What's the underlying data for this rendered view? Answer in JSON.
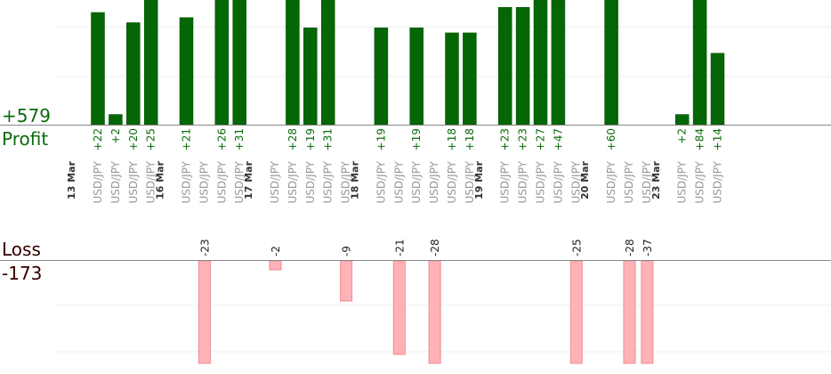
{
  "colors": {
    "profit_bar": "#056605",
    "profit_bar_edge": "#034f03",
    "profit_text": "#0b6b0b",
    "loss_bar": "#ffb3b8",
    "loss_bar_edge": "#f08a92",
    "loss_text": "#330000",
    "axis_line": "#888888",
    "grid_line": "#eeeeee",
    "pair_text": "#999999",
    "date_text": "#333333",
    "loss_value_text": "#222222"
  },
  "profit_summary": {
    "total": "+579",
    "label": "Profit"
  },
  "loss_summary": {
    "label": "Loss",
    "total": "-173"
  },
  "chart_data": {
    "type": "bar",
    "pair": "USD/JPY",
    "profit_scale_max": 37,
    "loss_scale_max": 37,
    "dates": [
      "13 Mar",
      "16 Mar",
      "17 Mar",
      "18 Mar",
      "19 Mar",
      "20 Mar",
      "23 Mar"
    ],
    "trades": [
      {
        "date": "13 Mar",
        "label": "USD/JPY",
        "value": 22
      },
      {
        "date": "13 Mar",
        "label": "USD/JPY",
        "value": 2
      },
      {
        "date": "13 Mar",
        "label": "USD/JPY",
        "value": 20
      },
      {
        "date": "13 Mar",
        "label": "USD/JPY",
        "value": 25
      },
      {
        "date": "16 Mar",
        "label": "USD/JPY",
        "value": 21
      },
      {
        "date": "16 Mar",
        "label": "USD/JPY",
        "value": -23
      },
      {
        "date": "16 Mar",
        "label": "USD/JPY",
        "value": 26
      },
      {
        "date": "16 Mar",
        "label": "USD/JPY",
        "value": 31
      },
      {
        "date": "17 Mar",
        "label": "USD/JPY",
        "value": -2
      },
      {
        "date": "17 Mar",
        "label": "USD/JPY",
        "value": 28
      },
      {
        "date": "17 Mar",
        "label": "USD/JPY",
        "value": 19
      },
      {
        "date": "17 Mar",
        "label": "USD/JPY",
        "value": 31
      },
      {
        "date": "17 Mar",
        "label": "USD/JPY",
        "value": -9
      },
      {
        "date": "18 Mar",
        "label": "USD/JPY",
        "value": 19
      },
      {
        "date": "18 Mar",
        "label": "USD/JPY",
        "value": -21
      },
      {
        "date": "18 Mar",
        "label": "USD/JPY",
        "value": 19
      },
      {
        "date": "18 Mar",
        "label": "USD/JPY",
        "value": -28
      },
      {
        "date": "18 Mar",
        "label": "USD/JPY",
        "value": 18
      },
      {
        "date": "18 Mar",
        "label": "USD/JPY",
        "value": 18
      },
      {
        "date": "19 Mar",
        "label": "USD/JPY",
        "value": 23
      },
      {
        "date": "19 Mar",
        "label": "USD/JPY",
        "value": 23
      },
      {
        "date": "19 Mar",
        "label": "USD/JPY",
        "value": 27
      },
      {
        "date": "19 Mar",
        "label": "USD/JPY",
        "value": 47
      },
      {
        "date": "19 Mar",
        "label": "USD/JPY",
        "value": -25
      },
      {
        "date": "20 Mar",
        "label": "USD/JPY",
        "value": 60
      },
      {
        "date": "20 Mar",
        "label": "USD/JPY",
        "value": -28
      },
      {
        "date": "20 Mar",
        "label": "USD/JPY",
        "value": -37
      },
      {
        "date": "23 Mar",
        "label": "USD/JPY",
        "value": 2
      },
      {
        "date": "23 Mar",
        "label": "USD/JPY",
        "value": 84
      },
      {
        "date": "23 Mar",
        "label": "USD/JPY",
        "value": 14
      }
    ]
  }
}
